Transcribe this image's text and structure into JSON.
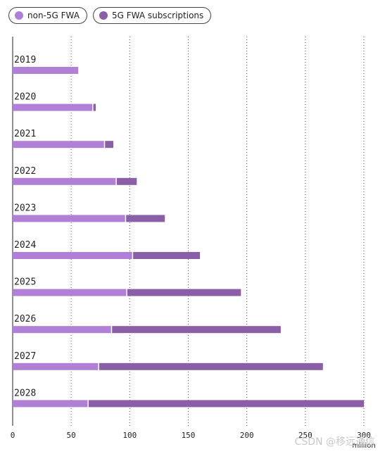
{
  "legend": {
    "items": [
      {
        "label": "non-5G FWA",
        "color": "#b07fd6"
      },
      {
        "label": "5G FWA subscriptions",
        "color": "#8b5fa8"
      }
    ]
  },
  "watermark": "CSDN @移远通信",
  "chart_data": {
    "type": "bar",
    "orientation": "horizontal",
    "stacked": true,
    "categories": [
      "2019",
      "2020",
      "2021",
      "2022",
      "2023",
      "2024",
      "2025",
      "2026",
      "2027",
      "2028"
    ],
    "series": [
      {
        "name": "non-5G FWA",
        "color": "#b07fd6",
        "values": [
          56,
          68,
          78,
          88,
          96,
          102,
          97,
          84,
          73,
          64
        ]
      },
      {
        "name": "5G FWA subscriptions",
        "color": "#8b5fa8",
        "values": [
          0,
          3,
          8,
          18,
          34,
          58,
          98,
          145,
          192,
          236
        ]
      }
    ],
    "xlim": [
      0,
      300
    ],
    "xticks": [
      0,
      50,
      100,
      150,
      200,
      250,
      300
    ],
    "xunit": "million",
    "grid": "vertical dotted"
  }
}
